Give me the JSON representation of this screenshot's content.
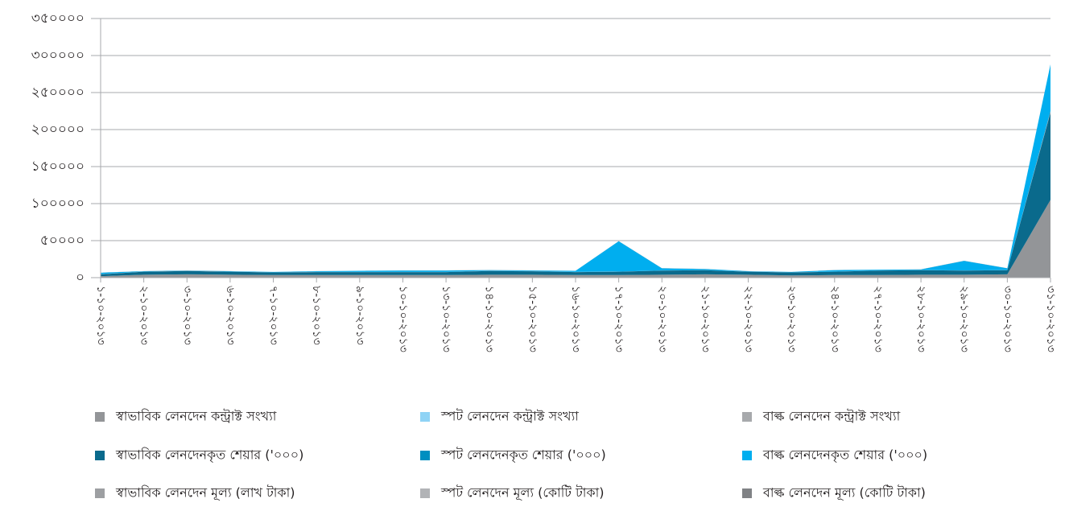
{
  "chart_data": {
    "type": "area",
    "categories": [
      "১-১০-২০১৩",
      "২-১০-২০১৩",
      "৩-১০-২০১৩",
      "৬-১০-২০১৩",
      "৭-১০-২০১৩",
      "৮-১০-২০১৩",
      "৯-১০-২০১৩",
      "১০-১০-২০১৩",
      "১৩-১০-২০১৩",
      "১৪-১০-২০১৩",
      "১৫-১০-২০১৩",
      "১৬-১০-২০১৩",
      "১৭-১০-২০১৩",
      "২০-১০-২০১৩",
      "২১-১০-২০১৩",
      "২২-১০-২০১৩",
      "২৩-১০-২০১৩",
      "২৪-১০-২০১৩",
      "২৭-১০-২০১৩",
      "২৮-১০-২০১৩",
      "২৯-১০-২০১৩",
      "৩০-১০-২০১৩",
      "৩১-১০-২০১৩"
    ],
    "series": [
      {
        "name": "স্বাভাবিক লেনদেন কন্ট্রাক্ট সংখ্যা",
        "color": "#939598",
        "values": [
          2000,
          4000,
          4500,
          4000,
          3500,
          3500,
          3500,
          3500,
          3500,
          4000,
          4000,
          3500,
          3500,
          4000,
          4500,
          4000,
          3000,
          3500,
          3500,
          4000,
          4000,
          4500,
          105000
        ]
      },
      {
        "name": "স্বাভাবিক লেনদেনকৃত শেয়ার ('০০০)",
        "color": "#0a6a8c",
        "values": [
          2500,
          4000,
          4500,
          4000,
          3500,
          4000,
          4000,
          4000,
          4000,
          5000,
          4500,
          4000,
          4500,
          5500,
          5500,
          4000,
          4000,
          4500,
          6000,
          6000,
          5500,
          5500,
          118000
        ]
      },
      {
        "name": "স্বাভাবিক লেনদেন মূল্য (লাখ টাকা)",
        "color": "#9d9fa2",
        "values": [
          200,
          200,
          200,
          200,
          200,
          200,
          200,
          200,
          200,
          200,
          200,
          200,
          200,
          200,
          200,
          200,
          200,
          200,
          200,
          200,
          200,
          200,
          2000
        ]
      },
      {
        "name": "স্পট লেনদেন কন্ট্রাক্ট সংখ্যা",
        "color": "#8fd3f5",
        "values": [
          0,
          0,
          0,
          0,
          0,
          0,
          0,
          0,
          0,
          0,
          0,
          0,
          0,
          0,
          0,
          0,
          0,
          0,
          0,
          0,
          0,
          0,
          0
        ]
      },
      {
        "name": "স্পট লেনদেনকৃত শেয়ার ('০০০)",
        "color": "#008fc0",
        "values": [
          0,
          0,
          0,
          0,
          0,
          0,
          0,
          0,
          0,
          0,
          0,
          0,
          0,
          0,
          0,
          0,
          0,
          0,
          0,
          0,
          0,
          0,
          0
        ]
      },
      {
        "name": "স্পট লেনদেন মূল্য (কোটি টাকা)",
        "color": "#b1b3b6",
        "values": [
          0,
          0,
          0,
          0,
          0,
          0,
          0,
          0,
          0,
          0,
          0,
          0,
          0,
          0,
          0,
          0,
          0,
          0,
          0,
          0,
          0,
          0,
          0
        ]
      },
      {
        "name": "বাল্ক লেনদেন কন্ট্রাক্ট সংখ্যা",
        "color": "#a7a9ac",
        "values": [
          0,
          0,
          0,
          0,
          0,
          0,
          0,
          0,
          0,
          0,
          0,
          0,
          0,
          0,
          0,
          0,
          0,
          0,
          0,
          0,
          0,
          0,
          0
        ]
      },
      {
        "name": "বাল্ক লেনদেনকৃত শেয়ার ('০০০)",
        "color": "#00aeef",
        "values": [
          2000,
          500,
          500,
          500,
          500,
          1000,
          1500,
          2000,
          2000,
          1000,
          1000,
          1500,
          41000,
          3000,
          1500,
          500,
          500,
          2000,
          1000,
          1000,
          13000,
          2500,
          63000
        ]
      },
      {
        "name": "বাল্ক লেনদেন মূল্য (কোটি টাকা)",
        "color": "#808285",
        "values": [
          100,
          100,
          100,
          100,
          100,
          100,
          100,
          100,
          100,
          100,
          100,
          100,
          100,
          100,
          100,
          100,
          100,
          100,
          100,
          100,
          100,
          100,
          100
        ]
      }
    ],
    "ylim": [
      0,
      350000
    ],
    "yticks": [
      {
        "value": 0,
        "label": "০"
      },
      {
        "value": 50000,
        "label": "৫০০০০"
      },
      {
        "value": 100000,
        "label": "১০০০০০"
      },
      {
        "value": 150000,
        "label": "১৫০০০০"
      },
      {
        "value": 200000,
        "label": "২০০০০০"
      },
      {
        "value": 250000,
        "label": "২৫০০০০"
      },
      {
        "value": 300000,
        "label": "৩০০০০০"
      },
      {
        "value": 350000,
        "label": "৩৫০০০০"
      }
    ],
    "grid": true
  }
}
